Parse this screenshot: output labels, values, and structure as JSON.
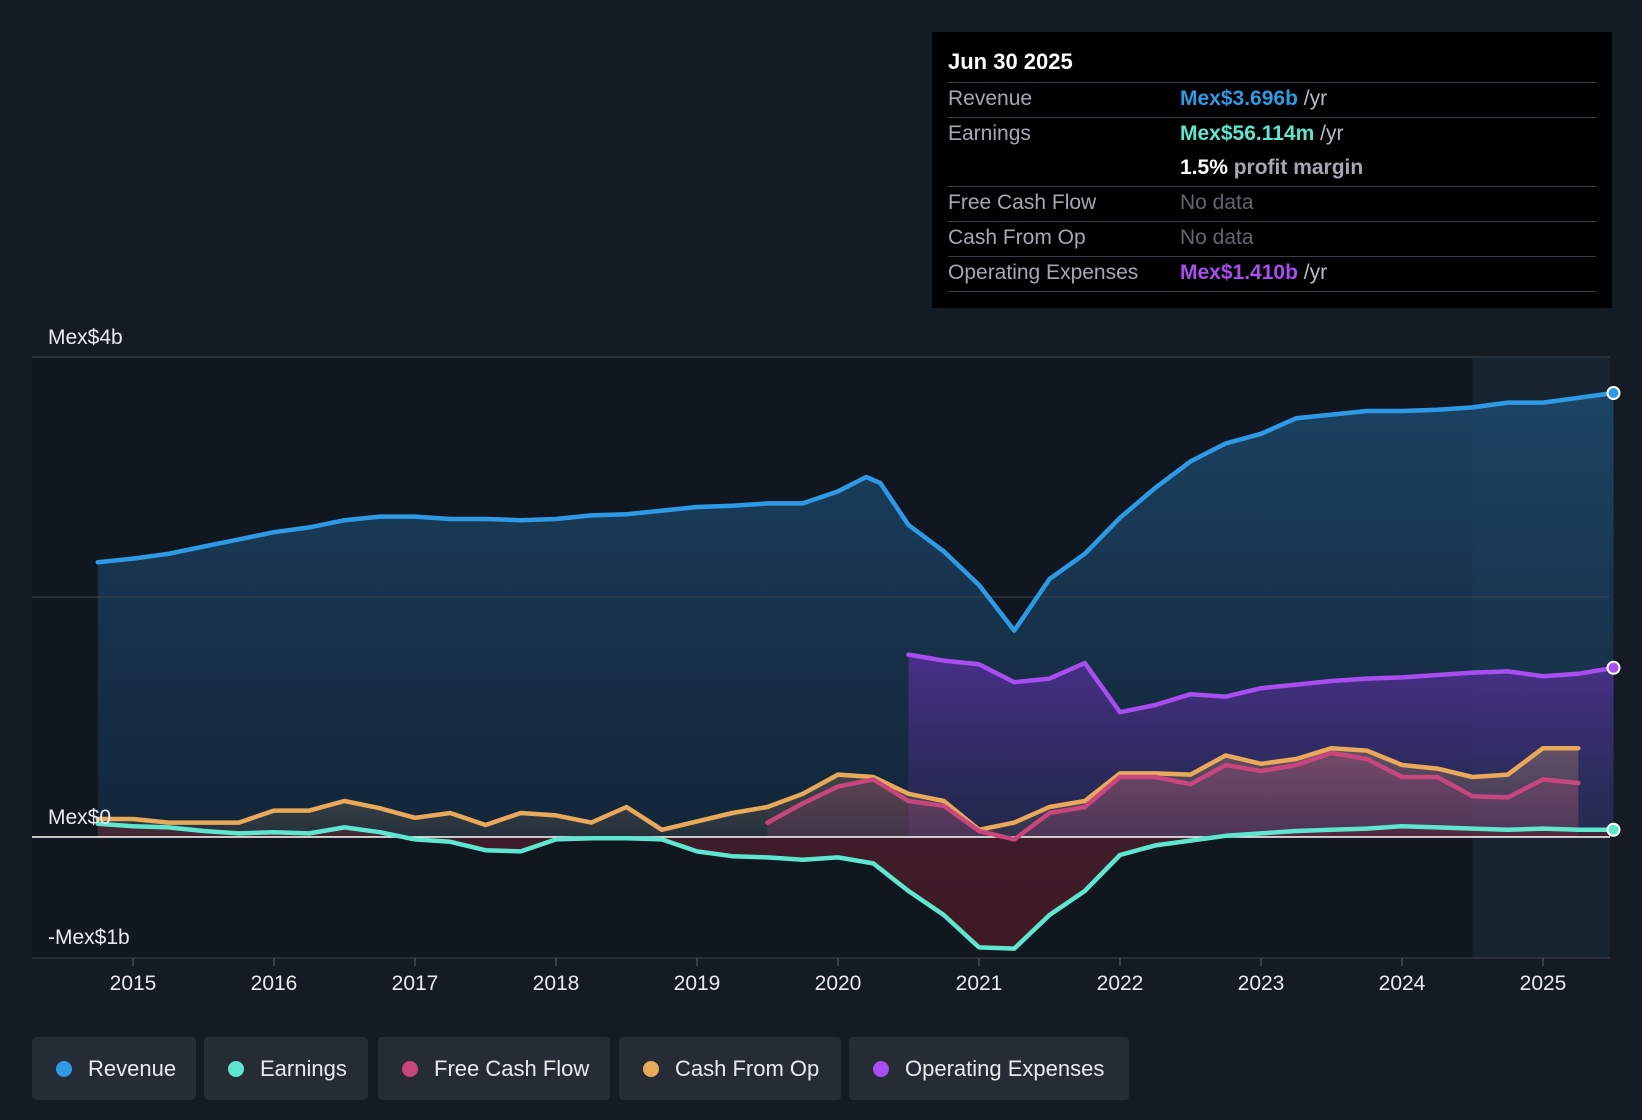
{
  "tooltip": {
    "date": "Jun 30 2025",
    "revenue_label": "Revenue",
    "revenue_value": "Mex$3.696b",
    "earnings_label": "Earnings",
    "earnings_value": "Mex$56.114m",
    "per_year": "/yr",
    "margin_value": "1.5%",
    "margin_text": "profit margin",
    "fcf_label": "Free Cash Flow",
    "fcf_value": "No data",
    "cfo_label": "Cash From Op",
    "cfo_value": "No data",
    "opex_label": "Operating Expenses",
    "opex_value": "Mex$1.410b"
  },
  "legend": {
    "items": [
      {
        "label": "Revenue",
        "color": "#2e9ae6"
      },
      {
        "label": "Earnings",
        "color": "#5ee6cf"
      },
      {
        "label": "Free Cash Flow",
        "color": "#c8457e"
      },
      {
        "label": "Cash From Op",
        "color": "#e8a95b"
      },
      {
        "label": "Operating Expenses",
        "color": "#a84df0"
      }
    ]
  },
  "chart_data": {
    "type": "line",
    "title": "",
    "xlabel": "",
    "ylabel": "",
    "ylim": [
      -1.0,
      4.0
    ],
    "y_units": "Mex$ billions",
    "y_tick_labels": [
      {
        "value": 4,
        "label": "Mex$4b"
      },
      {
        "value": 0,
        "label": "Mex$0"
      },
      {
        "value": -1,
        "label": "-Mex$1b"
      }
    ],
    "y_grid": [
      4,
      2,
      0
    ],
    "xlim": [
      2014.25,
      2025.5
    ],
    "x_ticks": [
      2015,
      2016,
      2017,
      2018,
      2019,
      2020,
      2021,
      2022,
      2023,
      2024,
      2025
    ],
    "x_tick_labels": [
      "2015",
      "2016",
      "2017",
      "2018",
      "2019",
      "2020",
      "2021",
      "2022",
      "2023",
      "2024",
      "2025"
    ],
    "forecast_start": 2024.5,
    "colors": {
      "revenue": "#2e9ae6",
      "earnings": "#5ee6cf",
      "free_cash_flow": "#c8457e",
      "cash_from_op": "#e8a95b",
      "operating_expenses": "#a84df0"
    },
    "series": [
      {
        "name": "Revenue",
        "key": "revenue",
        "x": [
          2014.75,
          2015.0,
          2015.25,
          2015.5,
          2015.75,
          2016.0,
          2016.25,
          2016.5,
          2016.75,
          2017.0,
          2017.25,
          2017.5,
          2017.75,
          2018.0,
          2018.25,
          2018.5,
          2018.75,
          2019.0,
          2019.25,
          2019.5,
          2019.75,
          2020.0,
          2020.2,
          2020.3,
          2020.5,
          2020.75,
          2021.0,
          2021.25,
          2021.5,
          2021.75,
          2022.0,
          2022.25,
          2022.5,
          2022.75,
          2023.0,
          2023.25,
          2023.5,
          2023.75,
          2024.0,
          2024.25,
          2024.5,
          2024.75,
          2025.0,
          2025.25,
          2025.5
        ],
        "values": [
          2.29,
          2.32,
          2.36,
          2.42,
          2.48,
          2.54,
          2.58,
          2.64,
          2.67,
          2.67,
          2.65,
          2.65,
          2.64,
          2.65,
          2.68,
          2.69,
          2.72,
          2.75,
          2.76,
          2.78,
          2.78,
          2.88,
          3.0,
          2.95,
          2.6,
          2.38,
          2.1,
          1.72,
          2.15,
          2.36,
          2.66,
          2.91,
          3.13,
          3.28,
          3.36,
          3.49,
          3.52,
          3.55,
          3.55,
          3.56,
          3.58,
          3.62,
          3.62,
          3.66,
          3.7
        ]
      },
      {
        "name": "Earnings",
        "key": "earnings",
        "x": [
          2014.75,
          2015.0,
          2015.25,
          2015.5,
          2015.75,
          2016.0,
          2016.25,
          2016.5,
          2016.75,
          2017.0,
          2017.25,
          2017.5,
          2017.75,
          2018.0,
          2018.25,
          2018.5,
          2018.75,
          2019.0,
          2019.25,
          2019.5,
          2019.75,
          2020.0,
          2020.25,
          2020.5,
          2020.75,
          2021.0,
          2021.25,
          2021.5,
          2021.75,
          2022.0,
          2022.25,
          2022.5,
          2022.75,
          2023.0,
          2023.25,
          2023.5,
          2023.75,
          2024.0,
          2024.25,
          2024.5,
          2024.75,
          2025.0,
          2025.25,
          2025.5
        ],
        "values": [
          0.11,
          0.09,
          0.08,
          0.05,
          0.03,
          0.04,
          0.03,
          0.08,
          0.04,
          -0.02,
          -0.04,
          -0.11,
          -0.12,
          -0.02,
          -0.01,
          -0.01,
          -0.02,
          -0.12,
          -0.16,
          -0.17,
          -0.19,
          -0.17,
          -0.22,
          -0.45,
          -0.65,
          -0.92,
          -0.93,
          -0.65,
          -0.45,
          -0.15,
          -0.07,
          -0.03,
          0.01,
          0.03,
          0.05,
          0.06,
          0.07,
          0.09,
          0.08,
          0.07,
          0.06,
          0.07,
          0.06,
          0.06
        ]
      },
      {
        "name": "Free Cash Flow",
        "key": "free_cash_flow",
        "x": [
          2019.5,
          2019.75,
          2020.0,
          2020.25,
          2020.5,
          2020.75,
          2021.0,
          2021.25,
          2021.5,
          2021.75,
          2022.0,
          2022.25,
          2022.5,
          2022.75,
          2023.0,
          2023.25,
          2023.5,
          2023.75,
          2024.0,
          2024.25,
          2024.5,
          2024.75,
          2025.0,
          2025.25
        ],
        "values": [
          0.12,
          0.28,
          0.42,
          0.48,
          0.3,
          0.26,
          0.05,
          -0.02,
          0.2,
          0.25,
          0.5,
          0.5,
          0.44,
          0.6,
          0.55,
          0.6,
          0.7,
          0.65,
          0.5,
          0.5,
          0.34,
          0.33,
          0.48,
          0.45
        ]
      },
      {
        "name": "Cash From Op",
        "key": "cash_from_op",
        "x": [
          2014.75,
          2015.0,
          2015.25,
          2015.5,
          2015.75,
          2016.0,
          2016.25,
          2016.5,
          2016.75,
          2017.0,
          2017.25,
          2017.5,
          2017.75,
          2018.0,
          2018.25,
          2018.5,
          2018.75,
          2019.0,
          2019.25,
          2019.5,
          2019.75,
          2020.0,
          2020.25,
          2020.5,
          2020.75,
          2021.0,
          2021.25,
          2021.5,
          2021.75,
          2022.0,
          2022.25,
          2022.5,
          2022.75,
          2023.0,
          2023.25,
          2023.5,
          2023.75,
          2024.0,
          2024.25,
          2024.5,
          2024.75,
          2025.0,
          2025.25
        ],
        "values": [
          0.15,
          0.15,
          0.12,
          0.12,
          0.12,
          0.22,
          0.22,
          0.3,
          0.24,
          0.16,
          0.2,
          0.1,
          0.2,
          0.18,
          0.12,
          0.25,
          0.06,
          0.13,
          0.2,
          0.25,
          0.36,
          0.52,
          0.5,
          0.36,
          0.3,
          0.06,
          0.12,
          0.25,
          0.3,
          0.53,
          0.53,
          0.52,
          0.68,
          0.61,
          0.65,
          0.74,
          0.72,
          0.6,
          0.57,
          0.5,
          0.52,
          0.74,
          0.74
        ]
      },
      {
        "name": "Operating Expenses",
        "key": "operating_expenses",
        "x": [
          2020.5,
          2020.75,
          2021.0,
          2021.25,
          2021.5,
          2021.75,
          2022.0,
          2022.25,
          2022.5,
          2022.75,
          2023.0,
          2023.25,
          2023.5,
          2023.75,
          2024.0,
          2024.25,
          2024.5,
          2024.75,
          2025.0,
          2025.25,
          2025.5
        ],
        "values": [
          1.52,
          1.47,
          1.44,
          1.29,
          1.32,
          1.45,
          1.04,
          1.1,
          1.19,
          1.17,
          1.24,
          1.27,
          1.3,
          1.32,
          1.33,
          1.35,
          1.37,
          1.38,
          1.34,
          1.36,
          1.41
        ]
      }
    ]
  }
}
